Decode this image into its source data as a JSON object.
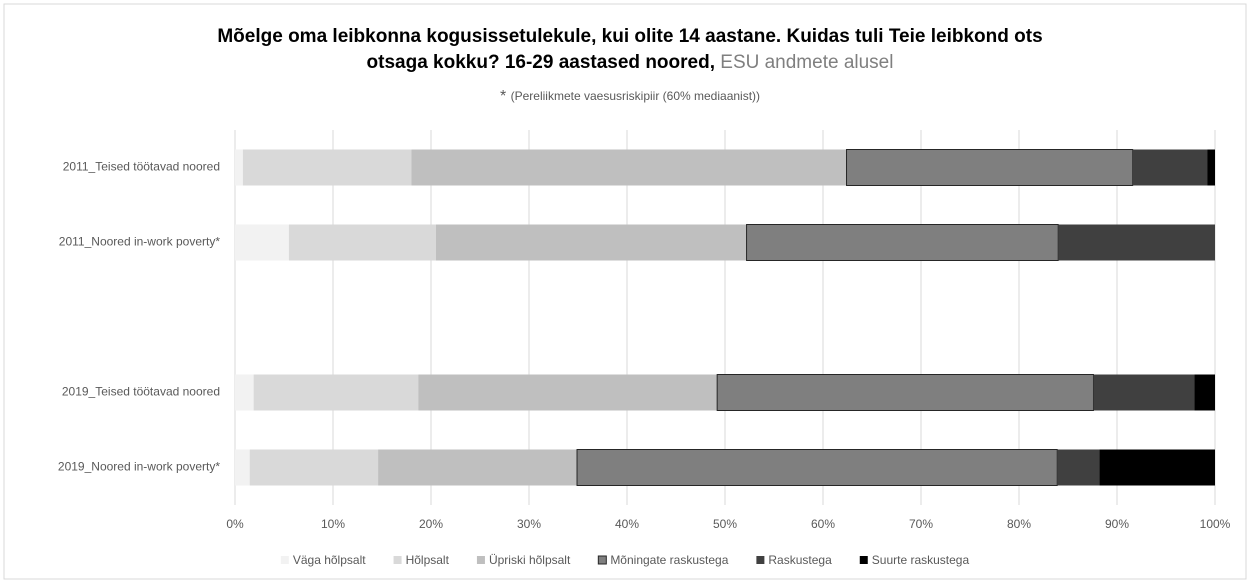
{
  "chart_data": {
    "type": "stacked-bar-horizontal",
    "title": [
      "Mõelge oma leibkonna kogusissetulekule, kui olite 14 aastane. Kuidas tuli Teie leibkond ots",
      "otsaga kokku? 16-29 aastased noored,"
    ],
    "title_note": "ESU andmete alusel",
    "subtitle_mark": "*",
    "subtitle": "(Pereliikmete vaesusriskipiir (60% mediaanist))",
    "categories": [
      "2011_Teised töötavad noored",
      "2011_Noored in-work poverty*",
      null,
      "2019_Teised töötavad noored",
      "2019_Noored in-work poverty*"
    ],
    "series": [
      {
        "name": "Väga hõlpsalt",
        "color": "#f2f2f2",
        "values": [
          0.8,
          5.5,
          null,
          1.9,
          1.5
        ]
      },
      {
        "name": "Hõlpsalt",
        "color": "#d9d9d9",
        "values": [
          17.2,
          15.0,
          null,
          16.8,
          13.1
        ]
      },
      {
        "name": "Üpriski hõlpsalt",
        "color": "#bfbfbf",
        "values": [
          44.4,
          31.7,
          null,
          30.5,
          20.3
        ]
      },
      {
        "name": "Mõningate raskustega",
        "color": "#7f7f7f",
        "values": [
          29.2,
          31.8,
          null,
          38.4,
          49.0
        ]
      },
      {
        "name": "Raskustega",
        "color": "#404040",
        "values": [
          7.6,
          16.0,
          null,
          10.3,
          4.3
        ]
      },
      {
        "name": "Suurte raskustega",
        "color": "#000000",
        "values": [
          0.8,
          0,
          null,
          2.1,
          11.8
        ]
      }
    ],
    "xlim": [
      0,
      100
    ],
    "xticks": [
      {
        "value": 0,
        "label": "0%"
      },
      {
        "value": 10,
        "label": "10%"
      },
      {
        "value": 20,
        "label": "20%"
      },
      {
        "value": 30,
        "label": "30%"
      },
      {
        "value": 40,
        "label": "40%"
      },
      {
        "value": 50,
        "label": "50%"
      },
      {
        "value": 60,
        "label": "60%"
      },
      {
        "value": 70,
        "label": "70%"
      },
      {
        "value": 80,
        "label": "80%"
      },
      {
        "value": 90,
        "label": "90%"
      },
      {
        "value": 100,
        "label": "100%"
      }
    ],
    "grid": true,
    "legend": "bottom"
  }
}
